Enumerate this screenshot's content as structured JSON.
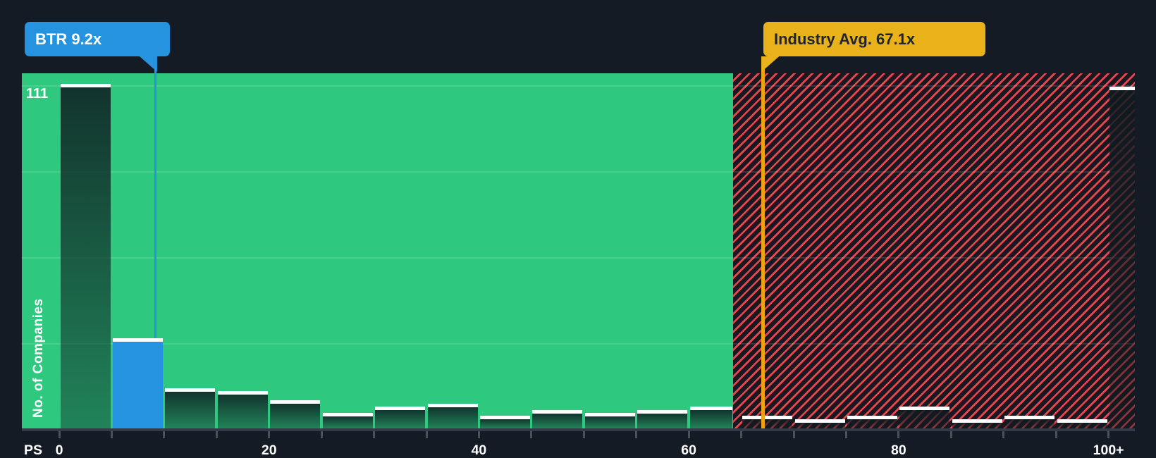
{
  "chart_data": {
    "type": "bar",
    "subtype": "histogram",
    "ylabel": "No. of Companies",
    "x_axis_prefix": "PS",
    "x_tick_step": 5,
    "x_axis_labels": [
      {
        "value": 0,
        "label": "0"
      },
      {
        "value": 20,
        "label": "20"
      },
      {
        "value": 40,
        "label": "40"
      },
      {
        "value": 60,
        "label": "60"
      },
      {
        "value": 80,
        "label": "80"
      },
      {
        "value": 100,
        "label": "100+"
      }
    ],
    "ylim": [
      0,
      114
    ],
    "grid": "horizontal-faint",
    "max_bar_label": "111",
    "buckets": [
      {
        "range": "0-5",
        "count": 111
      },
      {
        "range": "5-10",
        "count": 29,
        "highlight": true
      },
      {
        "range": "10-15",
        "count": 13
      },
      {
        "range": "15-20",
        "count": 12
      },
      {
        "range": "20-25",
        "count": 9
      },
      {
        "range": "25-30",
        "count": 5
      },
      {
        "range": "30-35",
        "count": 7
      },
      {
        "range": "35-40",
        "count": 8
      },
      {
        "range": "40-45",
        "count": 4
      },
      {
        "range": "45-50",
        "count": 6
      },
      {
        "range": "50-55",
        "count": 5
      },
      {
        "range": "55-60",
        "count": 6
      },
      {
        "range": "60-65",
        "count": 7
      },
      {
        "range": "65-70",
        "count": 4
      },
      {
        "range": "70-75",
        "count": 3
      },
      {
        "range": "75-80",
        "count": 4
      },
      {
        "range": "80-85",
        "count": 7
      },
      {
        "range": "85-90",
        "count": 3
      },
      {
        "range": "90-95",
        "count": 4
      },
      {
        "range": "95-100",
        "count": 3
      },
      {
        "range": "100+",
        "count": 110,
        "half_width": true
      }
    ],
    "markers": {
      "company": {
        "label": "BTR 9.2x",
        "value": 9.2,
        "color": "#2593e0"
      },
      "industry": {
        "label": "Industry Avg. 67.1x",
        "value": 67.1,
        "color": "#e9b11a"
      }
    },
    "zones": {
      "below_average": {
        "from": 0,
        "to": 64.2,
        "color": "#2ec97f"
      },
      "above_average": {
        "from": 64.2,
        "to": 102.5,
        "style": "hatched",
        "stripe_color": "#e8474f"
      }
    }
  },
  "colors": {
    "background": "#151b24",
    "green_zone": "#2ec97f",
    "hatch_stripe": "#e8474f",
    "hatch_background": "#1a1720",
    "bar_cap": "#ffffff",
    "highlight_blue": "#2593e0",
    "industry_yellow": "#e9b11a",
    "industry_line": "#eda414",
    "axis_gray": "#4a515e",
    "label_text": "#ffffff",
    "tooltip_dark_text": "#1e2530"
  }
}
